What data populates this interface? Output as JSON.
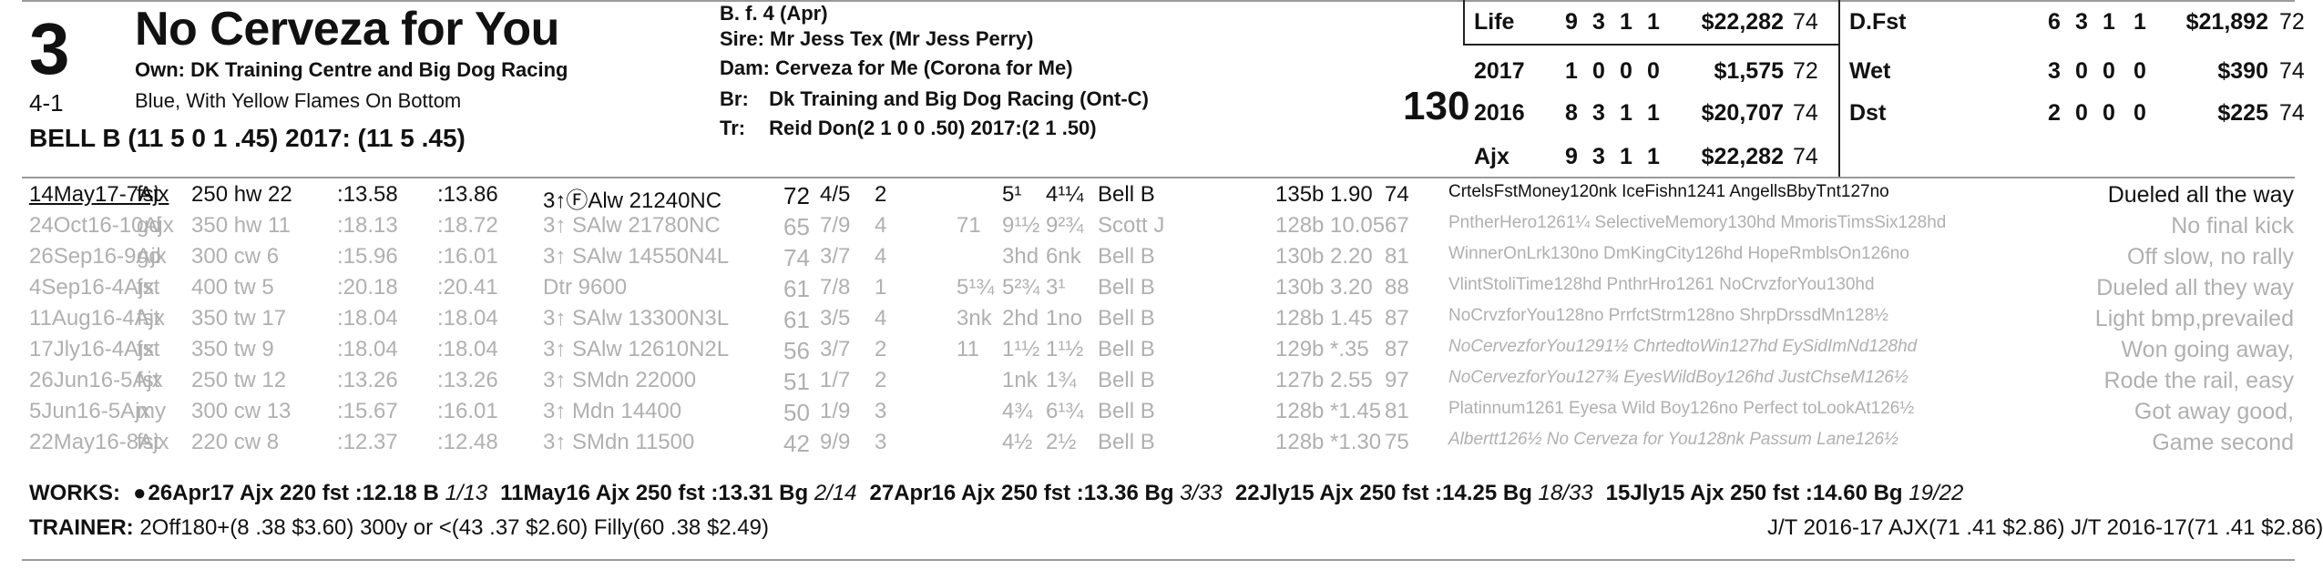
{
  "entry": {
    "post": "3",
    "odds": "4-1",
    "horse_name": "No Cerveza for You",
    "owner": "Own: DK Training Centre and Big Dog Racing",
    "silks": "Blue, With Yellow Flames On Bottom",
    "jockey": "BELL B (11 5 0 1 .45) 2017: (11 5 .45)"
  },
  "pedigree": {
    "sex_age": "B. f. 4 (Apr)",
    "sire_label": "Sire:",
    "sire": "Mr Jess Tex (Mr Jess Perry)",
    "dam_label": "Dam:",
    "dam": "Cerveza for Me (Corona for Me)",
    "br_label": "Br:",
    "breeder": "Dk Training and Big Dog Racing (Ont-C)",
    "tr_label": "Tr:",
    "trainer": "Reid Don(2 1 0 0 .50) 2017:(2 1 .50)"
  },
  "weight": "130",
  "stats_left": [
    {
      "label": "Life",
      "st": "9",
      "w": "3",
      "p": "1",
      "s": "1",
      "earn": "$22,282",
      "spd": "74"
    },
    {
      "label": "2017",
      "st": "1",
      "w": "0",
      "p": "0",
      "s": "0",
      "earn": "$1,575",
      "spd": "72"
    },
    {
      "label": "2016",
      "st": "8",
      "w": "3",
      "p": "1",
      "s": "1",
      "earn": "$20,707",
      "spd": "74"
    },
    {
      "label": "Ajx",
      "st": "9",
      "w": "3",
      "p": "1",
      "s": "1",
      "earn": "$22,282",
      "spd": "74"
    }
  ],
  "stats_right": [
    {
      "label": "D.Fst",
      "st": "6",
      "w": "3",
      "p": "1",
      "s": "1",
      "earn": "$21,892",
      "spd": "72"
    },
    {
      "label": "Wet",
      "st": "3",
      "w": "0",
      "p": "0",
      "s": "0",
      "earn": "$390",
      "spd": "74"
    },
    {
      "label": "Dst",
      "st": "2",
      "w": "0",
      "p": "0",
      "s": "0",
      "earn": "$225",
      "spd": "74"
    }
  ],
  "past_performances": [
    {
      "date": "14May17-7Ajx",
      "trk": "fst",
      "dist": "250 hw 22",
      "f1": ":13.58",
      "f2": ":13.86",
      "race": "3↑ⒻAlw 21240NC",
      "spd": "72",
      "pp": "4/5",
      "st": "2",
      "c1": "",
      "c2": "5¹",
      "fin": "4¹¼",
      "jock": "Bell B",
      "wt": "135b",
      "odds": "1.90",
      "sr": "74",
      "comp": "CrtelsFstMoney120nk IceFishn1241 AngellsBbyTnt127no",
      "comment": "Dueled all the way"
    },
    {
      "date": "24Oct16-10Ajx",
      "trk": "gd",
      "dist": "350 hw 11",
      "f1": ":18.13",
      "f2": ":18.72",
      "race": "3↑ SAlw 21780NC",
      "spd": "65",
      "pp": "7/9",
      "st": "4",
      "c1": "71",
      "c2": "9¹½",
      "fin": "9²¾",
      "jock": "Scott J",
      "wt": "128b",
      "odds": "10.05",
      "sr": "67",
      "comp": "PntherHero1261¼ SelectiveMemory130hd MmorisTimsSix128hd",
      "comment": "No final kick"
    },
    {
      "date": "26Sep16-9Ajx",
      "trk": "gd",
      "dist": "300 cw 6",
      "f1": ":15.96",
      "f2": ":16.01",
      "race": "3↑ SAlw 14550N4L",
      "spd": "74",
      "pp": "3/7",
      "st": "4",
      "c1": "",
      "c2": "3hd",
      "fin": "6nk",
      "jock": "Bell B",
      "wt": "130b",
      "odds": "2.20",
      "sr": "81",
      "comp": "WinnerOnLrk130no DmKingCity126hd HopeRmblsOn126no",
      "comment": "Off slow, no rally"
    },
    {
      "date": "4Sep16-4Ajx",
      "trk": "fst",
      "dist": "400 tw 5",
      "f1": ":20.18",
      "f2": ":20.41",
      "race": "Dtr 9600",
      "spd": "61",
      "pp": "7/8",
      "st": "1",
      "c1": "5¹¾",
      "c2": "5²¾",
      "fin": "3¹",
      "jock": "Bell B",
      "wt": "130b",
      "odds": "3.20",
      "sr": "88",
      "comp": "VlintStoliTime128hd PnthrHro1261 NoCrvzforYou130hd",
      "comment": "Dueled all they way"
    },
    {
      "date": "11Aug16-4Ajx",
      "trk": "fst",
      "dist": "350 tw 17",
      "f1": ":18.04",
      "f2": ":18.04",
      "race": "3↑ SAlw 13300N3L",
      "spd": "61",
      "pp": "3/5",
      "st": "4",
      "c1": "3nk",
      "c2": "2hd",
      "fin": "1no",
      "jock": "Bell B",
      "wt": "128b",
      "odds": "1.45",
      "sr": "87",
      "comp": "NoCrvzforYou128no PrrfctStrm128no ShrpDrssdMn128½",
      "comment": "Light bmp,prevailed"
    },
    {
      "date": "17Jly16-4Ajx",
      "trk": "fst",
      "dist": "350 tw 9",
      "f1": ":18.04",
      "f2": ":18.04",
      "race": "3↑ SAlw 12610N2L",
      "spd": "56",
      "pp": "3/7",
      "st": "2",
      "c1": "11",
      "c2": "1¹½",
      "fin": "1¹½",
      "jock": "Bell B",
      "wt": "129b",
      "odds": "*.35",
      "sr": "87",
      "comp": "NoCervezforYou1291½ ChrtedtoWin127hd EySidImNd128hd",
      "comment": "Won going away,"
    },
    {
      "date": "26Jun16-5Ajx",
      "trk": "fst",
      "dist": "250 tw 12",
      "f1": ":13.26",
      "f2": ":13.26",
      "race": "3↑ SMdn 22000",
      "spd": "51",
      "pp": "1/7",
      "st": "2",
      "c1": "",
      "c2": "1nk",
      "fin": "1¾",
      "jock": "Bell B",
      "wt": "127b",
      "odds": "2.55",
      "sr": "97",
      "comp": "NoCervezforYou127¾ EyesWildBoy126hd JustChseM126½",
      "comment": "Rode the rail, easy"
    },
    {
      "date": "5Jun16-5Ajx",
      "trk": "my",
      "dist": "300 cw 13",
      "f1": ":15.67",
      "f2": ":16.01",
      "race": "3↑ Mdn 14400",
      "spd": "50",
      "pp": "1/9",
      "st": "3",
      "c1": "",
      "c2": "4¾",
      "fin": "6¹¾",
      "jock": "Bell B",
      "wt": "128b",
      "odds": "*1.45",
      "sr": "81",
      "comp": "Platinnum1261 Eyesa Wild Boy126no Perfect toLookAt126½",
      "comment": "Got away good,"
    },
    {
      "date": "22May16-8Ajx",
      "trk": "fst",
      "dist": "220 cw 8",
      "f1": ":12.37",
      "f2": ":12.48",
      "race": "3↑ SMdn 11500",
      "spd": "42",
      "pp": "9/9",
      "st": "3",
      "c1": "",
      "c2": "4½",
      "fin": "2½",
      "jock": "Bell B",
      "wt": "128b",
      "odds": "*1.30",
      "sr": "75",
      "comp": "Albertt126½ No Cerveza for You128nk Passum Lane126½",
      "comment": "Game second"
    }
  ],
  "works": {
    "label": "WORKS:",
    "items": [
      {
        "bullet": "●",
        "date": "26Apr17",
        "trk": "Ajx",
        "dist": "220 fst",
        "time": ":12.18",
        "grade": "B",
        "rank": "1/13"
      },
      {
        "bullet": "",
        "date": "11May16",
        "trk": "Ajx",
        "dist": "250 fst",
        "time": ":13.31",
        "grade": "Bg",
        "rank": "2/14"
      },
      {
        "bullet": "",
        "date": "27Apr16",
        "trk": "Ajx",
        "dist": "250 fst",
        "time": ":13.36",
        "grade": "Bg",
        "rank": "3/33"
      },
      {
        "bullet": "",
        "date": "22Jly15",
        "trk": "Ajx",
        "dist": "250 fst",
        "time": ":14.25",
        "grade": "Bg",
        "rank": "18/33"
      },
      {
        "bullet": "",
        "date": "15Jly15",
        "trk": "Ajx",
        "dist": "250 fst",
        "time": ":14.60",
        "grade": "Bg",
        "rank": "19/22"
      }
    ]
  },
  "trainer_line": {
    "label": "TRAINER:",
    "text": "2Off180+(8 .38 $3.60) 300y or <(43 .37 $2.60) Filly(60 .38 $2.49)",
    "jt": "J/T 2016-17 AJX(71 .41 $2.86)  J/T 2016-17(71 .41 $2.86)"
  }
}
